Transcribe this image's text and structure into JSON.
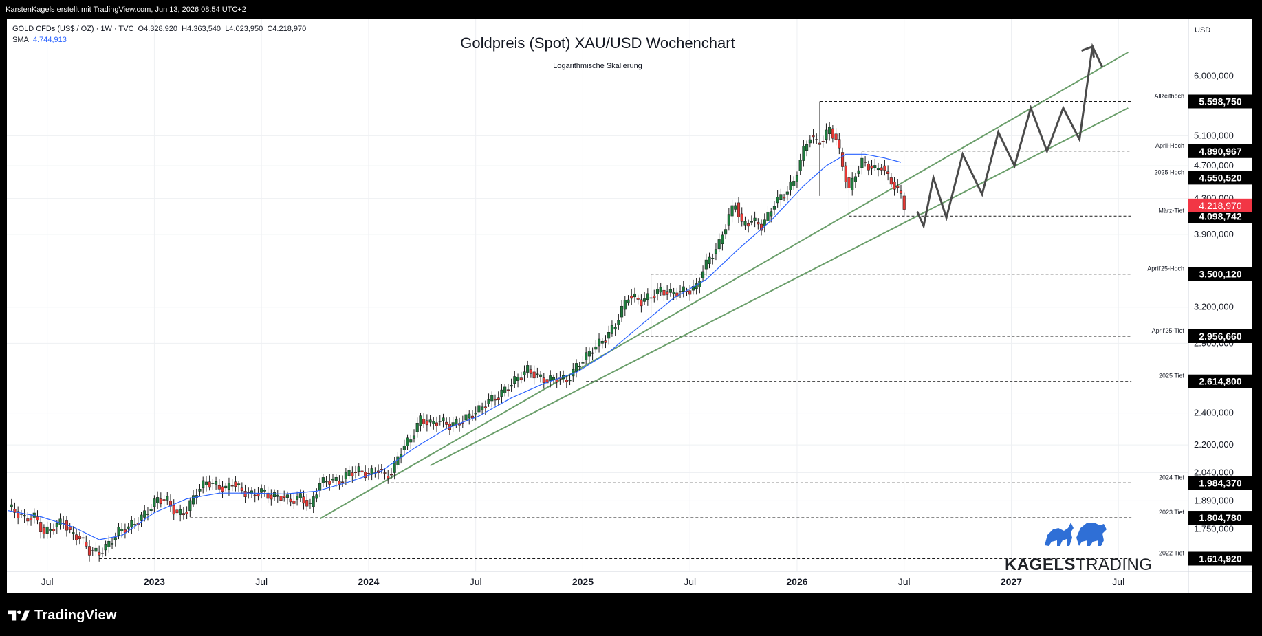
{
  "header": {
    "attribution": "KarstenKagels erstellt mit TradingView.com, Jun 13, 2026 08:54 UTC+2"
  },
  "legend": {
    "symbol": "GOLD CFDs (US$ / OZ) · 1W · TVC",
    "open": "O4.328,920",
    "high": "H4.363,540",
    "low": "L4.023,950",
    "close": "C4.218,970",
    "sma_label": "SMA",
    "sma_value": "4.744,913"
  },
  "currency": "USD",
  "footer": {
    "brand": "TradingView"
  },
  "brand_logo": {
    "strong": "KAGELS",
    "light": "TRADING"
  },
  "colors": {
    "up": "#1e7a3c",
    "down": "#e53935",
    "sma": "#2962ff",
    "trend": "#6a9e6a",
    "forecast": "#4a4a4a",
    "last_price": "#f23645"
  },
  "chart_data": {
    "type": "candlestick",
    "title": "Goldpreis (Spot) XAU/USD Wochenchart",
    "subtitle": "Logarithmische Skalierung",
    "y_scale": "log",
    "ylim": [
      1560,
      7000
    ],
    "x_ticks": [
      "Jul",
      "2023",
      "Jul",
      "2024",
      "Jul",
      "2025",
      "Jul",
      "2026",
      "Jul",
      "2027",
      "Jul"
    ],
    "x_tick_bold": [
      false,
      true,
      false,
      true,
      false,
      true,
      false,
      true,
      false,
      true,
      false
    ],
    "y_ticks": [
      "6.000,000",
      "5.100,000",
      "4.700,000",
      "4.300,000",
      "3.900,000",
      "3.200,000",
      "2.900,000",
      "2.400,000",
      "2.200,000",
      "2.040,000",
      "1.890,000",
      "1.750,000"
    ],
    "y_tick_values": [
      6000,
      5100,
      4700,
      4300,
      3900,
      3200,
      2900,
      2400,
      2200,
      2040,
      1890,
      1750
    ],
    "levels": [
      {
        "label": "Allzeithoch",
        "value_text": "5.598,750",
        "value": 5598.75
      },
      {
        "label": "April-Hoch",
        "value_text": "4.890,967",
        "value": 4890.967
      },
      {
        "label": "2025 Hoch",
        "value_text": "4.550,520",
        "value": 4550.52
      },
      {
        "label": "März-Tief",
        "value_text": "4.098,742",
        "value": 4098.742
      },
      {
        "label": "April'25-Hoch",
        "value_text": "3.500,120",
        "value": 3500.12
      },
      {
        "label": "April'25-Tief",
        "value_text": "2.956,660",
        "value": 2956.66
      },
      {
        "label": "2025 Tief",
        "value_text": "2.614,800",
        "value": 2614.8
      },
      {
        "label": "2024 Tief",
        "value_text": "1.984,370",
        "value": 1984.37
      },
      {
        "label": "2023 Tief",
        "value_text": "1.804,780",
        "value": 1804.78
      },
      {
        "label": "2022 Tief",
        "value_text": "1.614,920",
        "value": 1614.92
      }
    ],
    "last_price": {
      "value_text": "4.218,970",
      "value": 4218.97
    },
    "series_anchor_points": [
      [
        0,
        1860
      ],
      [
        5,
        1800
      ],
      [
        8,
        1810
      ],
      [
        11,
        1730
      ],
      [
        14,
        1760
      ],
      [
        17,
        1790
      ],
      [
        19,
        1730
      ],
      [
        22,
        1710
      ],
      [
        25,
        1650
      ],
      [
        28,
        1640
      ],
      [
        31,
        1680
      ],
      [
        34,
        1740
      ],
      [
        37,
        1760
      ],
      [
        40,
        1790
      ],
      [
        43,
        1840
      ],
      [
        46,
        1900
      ],
      [
        49,
        1890
      ],
      [
        52,
        1820
      ],
      [
        55,
        1840
      ],
      [
        58,
        1940
      ],
      [
        61,
        1990
      ],
      [
        64,
        1970
      ],
      [
        67,
        1950
      ],
      [
        69,
        1990
      ],
      [
        72,
        1940
      ],
      [
        75,
        1920
      ],
      [
        78,
        1940
      ],
      [
        81,
        1910
      ],
      [
        84,
        1915
      ],
      [
        87,
        1890
      ],
      [
        90,
        1910
      ],
      [
        93,
        1860
      ],
      [
        96,
        1985
      ],
      [
        99,
        2000
      ],
      [
        102,
        1990
      ],
      [
        105,
        2040
      ],
      [
        108,
        2050
      ],
      [
        111,
        2030
      ],
      [
        114,
        2060
      ],
      [
        116,
        2020
      ],
      [
        118,
        2040
      ],
      [
        121,
        2170
      ],
      [
        124,
        2240
      ],
      [
        127,
        2360
      ],
      [
        130,
        2330
      ],
      [
        133,
        2350
      ],
      [
        136,
        2320
      ],
      [
        139,
        2340
      ],
      [
        142,
        2380
      ],
      [
        145,
        2420
      ],
      [
        148,
        2480
      ],
      [
        151,
        2510
      ],
      [
        154,
        2580
      ],
      [
        157,
        2640
      ],
      [
        160,
        2700
      ],
      [
        163,
        2650
      ],
      [
        166,
        2620
      ],
      [
        169,
        2640
      ],
      [
        172,
        2620
      ],
      [
        175,
        2720
      ],
      [
        178,
        2800
      ],
      [
        181,
        2880
      ],
      [
        184,
        2940
      ],
      [
        187,
        3050
      ],
      [
        189,
        3180
      ],
      [
        191,
        3300
      ],
      [
        193,
        3280
      ],
      [
        195,
        3250
      ],
      [
        198,
        3300
      ],
      [
        201,
        3350
      ],
      [
        204,
        3320
      ],
      [
        207,
        3340
      ],
      [
        210,
        3350
      ],
      [
        212,
        3380
      ],
      [
        214,
        3550
      ],
      [
        216,
        3650
      ],
      [
        219,
        3800
      ],
      [
        222,
        4100
      ],
      [
        224,
        4250
      ],
      [
        226,
        4000
      ],
      [
        229,
        4050
      ],
      [
        232,
        3990
      ],
      [
        234,
        4100
      ],
      [
        236,
        4250
      ],
      [
        239,
        4350
      ],
      [
        242,
        4500
      ],
      [
        245,
        4900
      ],
      [
        247,
        5100
      ],
      [
        249,
        5000
      ],
      [
        251,
        5050
      ],
      [
        253,
        5200
      ],
      [
        255,
        5050
      ],
      [
        257,
        4700
      ],
      [
        259,
        4400
      ],
      [
        261,
        4600
      ],
      [
        263,
        4750
      ],
      [
        265,
        4700
      ],
      [
        267,
        4650
      ],
      [
        269,
        4700
      ],
      [
        271,
        4550
      ],
      [
        273,
        4450
      ],
      [
        275,
        4330
      ],
      [
        276,
        4219
      ]
    ],
    "sma_points": [
      [
        0,
        1840
      ],
      [
        10,
        1810
      ],
      [
        20,
        1760
      ],
      [
        28,
        1700
      ],
      [
        35,
        1720
      ],
      [
        45,
        1830
      ],
      [
        55,
        1900
      ],
      [
        65,
        1930
      ],
      [
        75,
        1930
      ],
      [
        85,
        1925
      ],
      [
        95,
        1940
      ],
      [
        105,
        1990
      ],
      [
        115,
        2050
      ],
      [
        125,
        2180
      ],
      [
        135,
        2300
      ],
      [
        145,
        2380
      ],
      [
        155,
        2500
      ],
      [
        165,
        2600
      ],
      [
        175,
        2680
      ],
      [
        185,
        2830
      ],
      [
        195,
        3050
      ],
      [
        205,
        3280
      ],
      [
        215,
        3450
      ],
      [
        225,
        3750
      ],
      [
        235,
        4050
      ],
      [
        245,
        4450
      ],
      [
        252,
        4700
      ],
      [
        258,
        4850
      ],
      [
        264,
        4850
      ],
      [
        270,
        4800
      ],
      [
        275,
        4745
      ]
    ],
    "trendlines": [
      {
        "from": [
          96,
          1800
        ],
        "to": [
          345,
          6400
        ]
      },
      {
        "from": [
          130,
          2080
        ],
        "to": [
          345,
          5500
        ]
      }
    ],
    "forecast_path": [
      [
        280,
        4150
      ],
      [
        282,
        3990
      ],
      [
        285,
        4550
      ],
      [
        289,
        4080
      ],
      [
        294,
        4850
      ],
      [
        300,
        4350
      ],
      [
        305,
        5150
      ],
      [
        310,
        4700
      ],
      [
        315,
        5500
      ],
      [
        320,
        4890
      ],
      [
        325,
        5500
      ],
      [
        330,
        5050
      ],
      [
        334,
        6500
      ],
      [
        337,
        6150
      ]
    ],
    "range_boxes": [
      {
        "x0": 250,
        "x1": 346,
        "value": 5598.75,
        "vertical_to": 4330
      },
      {
        "x0": 263,
        "x1": 346,
        "value": 4890.967
      },
      {
        "x0": 259,
        "x1": 346,
        "value": 4098.742,
        "vertical_to": 4600
      },
      {
        "x0": 198,
        "x1": 346,
        "value": 3500.12,
        "vertical_to": 2956.66
      },
      {
        "x0": 195,
        "x1": 346,
        "value": 2956.66
      },
      {
        "x0": 178,
        "x1": 346,
        "value": 2614.8
      },
      {
        "x0": 118,
        "x1": 346,
        "value": 1984.37
      },
      {
        "x0": 56,
        "x1": 346,
        "value": 1804.78
      },
      {
        "x0": 28,
        "x1": 346,
        "value": 1614.92
      }
    ],
    "x_units": "weeks since first candle",
    "x_tick_positions": [
      12,
      45,
      78,
      111,
      144,
      177,
      210,
      243,
      276,
      309,
      342
    ]
  }
}
